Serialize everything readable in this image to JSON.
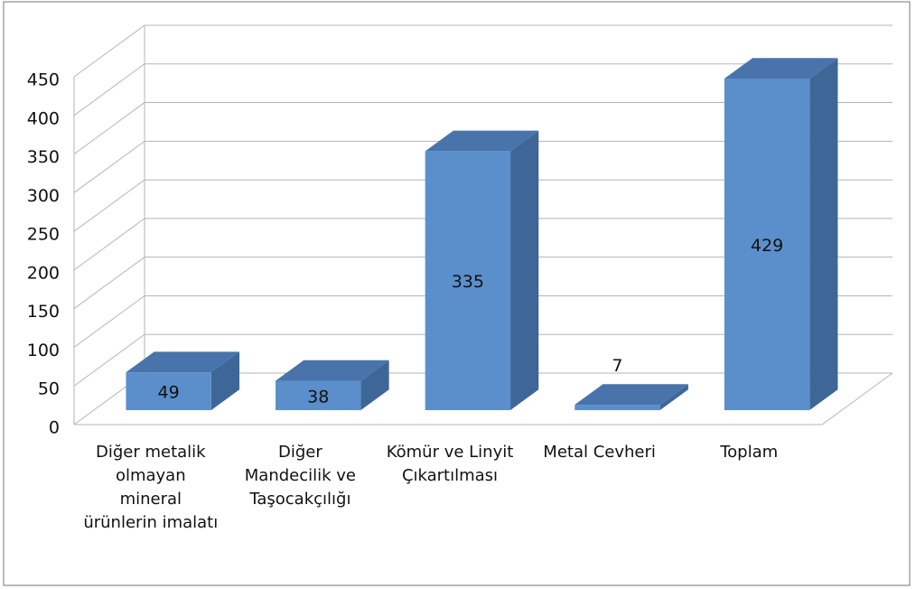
{
  "chart_data": {
    "type": "bar3d",
    "categories": [
      "Diğer metalik olmayan mineral ürünlerin imalatı",
      "Diğer Mandecilik ve Taşocakçılığı",
      "Kömür ve Linyit Çıkartılması",
      "Metal Cevheri",
      "Toplam"
    ],
    "values": [
      49,
      38,
      335,
      7,
      429
    ],
    "color": "#5b8fcb",
    "ylim": [
      0,
      450
    ],
    "yticks": [
      0,
      50,
      100,
      150,
      200,
      250,
      300,
      350,
      400,
      450
    ],
    "grid": true
  }
}
